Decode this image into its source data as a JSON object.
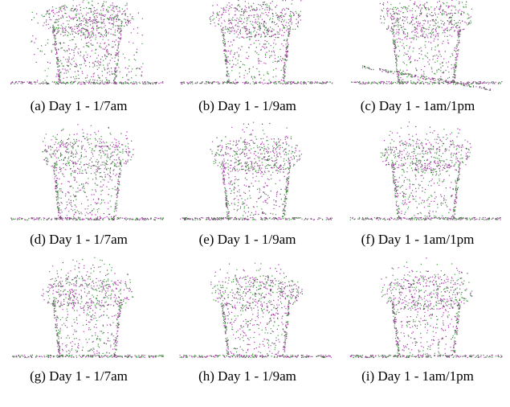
{
  "captions": [
    "(a) Day 1 - 1/7am",
    "(b) Day 1 - 1/9am",
    "(c) Day 1 - 1am/1pm",
    "(d) Day 1 - 1/7am",
    "(e) Day 1 - 1/9am",
    "(f) Day 1 - 1am/1pm",
    "(g) Day 1 - 1/7am",
    "(h) Day 1 - 1/9am",
    "(i) Day 1 - 1am/1pm"
  ]
}
